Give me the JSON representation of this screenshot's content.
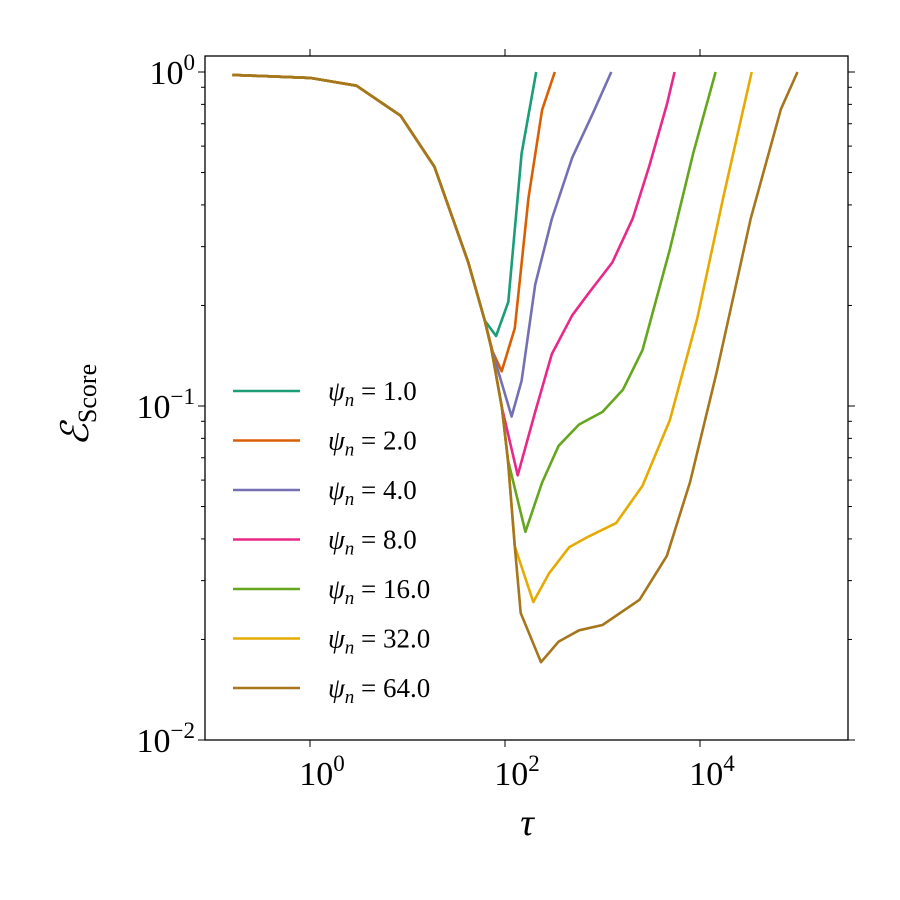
{
  "chart_data": {
    "type": "line",
    "title": "",
    "xlabel": "τ",
    "ylabel": {
      "main": "ℰ",
      "sub": "Score"
    },
    "xscale": "log",
    "yscale": "log",
    "xlim": [
      0.08,
      300000
    ],
    "ylim": [
      0.01,
      1.0
    ],
    "grid": false,
    "legend_placement": "lower-left",
    "xticks": [
      {
        "value": 1,
        "base": "10",
        "exp": "0"
      },
      {
        "value": 100,
        "base": "10",
        "exp": "2"
      },
      {
        "value": 10000,
        "base": "10",
        "exp": "4"
      }
    ],
    "yticks": [
      {
        "value": 1,
        "base": "10",
        "exp": "0"
      },
      {
        "value": 0.1,
        "base": "10",
        "exp": "−1"
      },
      {
        "value": 0.01,
        "base": "10",
        "exp": "−2"
      }
    ],
    "series": [
      {
        "name": "ψn = 1.0",
        "label_sym": "ψ",
        "label_sub": "n",
        "label_val": " = 1.0",
        "color": "#1b9e77",
        "x": [
          0.16,
          1,
          3,
          8.5,
          18.9,
          41.8,
          62,
          81,
          108,
          148,
          209
        ],
        "y": [
          0.98,
          0.96,
          0.91,
          0.74,
          0.52,
          0.27,
          0.18,
          0.162,
          0.205,
          0.57,
          1.0
        ]
      },
      {
        "name": "ψn = 2.0",
        "label_sym": "ψ",
        "label_sub": "n",
        "label_val": " = 2.0",
        "color": "#d95f02",
        "x": [
          0.16,
          1,
          3,
          8.5,
          18.9,
          41.8,
          62,
          75,
          92.5,
          126,
          174,
          240,
          324
        ],
        "y": [
          0.98,
          0.96,
          0.91,
          0.74,
          0.52,
          0.27,
          0.18,
          0.145,
          0.127,
          0.171,
          0.42,
          0.77,
          1.0
        ]
      },
      {
        "name": "ψn = 4.0",
        "label_sym": "ψ",
        "label_sub": "n",
        "label_val": " = 4.0",
        "color": "#7570b3",
        "x": [
          0.16,
          1,
          3,
          8.5,
          18.9,
          41.8,
          62,
          72,
          117,
          148,
          204,
          302,
          490,
          794,
          1230
        ],
        "y": [
          0.98,
          0.96,
          0.91,
          0.74,
          0.52,
          0.27,
          0.18,
          0.15,
          0.093,
          0.119,
          0.231,
          0.363,
          0.555,
          0.75,
          1.0
        ]
      },
      {
        "name": "ψn = 8.0",
        "label_sym": "ψ",
        "label_sub": "n",
        "label_val": " = 8.0",
        "color": "#e7298a",
        "x": [
          0.16,
          1,
          3,
          8.5,
          18.9,
          41.8,
          62,
          72,
          93,
          135,
          204,
          302,
          490,
          724,
          1259,
          2042,
          3020,
          4571,
          5495
        ],
        "y": [
          0.98,
          0.96,
          0.91,
          0.74,
          0.52,
          0.27,
          0.18,
          0.15,
          0.099,
          0.062,
          0.096,
          0.143,
          0.187,
          0.218,
          0.269,
          0.364,
          0.523,
          0.8,
          1.0
        ]
      },
      {
        "name": "ψn = 16.0",
        "label_sym": "ψ",
        "label_sub": "n",
        "label_val": " = 16.0",
        "color": "#66a61e",
        "x": [
          0.16,
          1,
          3,
          8.5,
          18.9,
          41.8,
          62,
          72,
          93,
          107,
          162,
          240,
          355,
          575,
          1000,
          1622,
          2570,
          4898,
          8511,
          14454
        ],
        "y": [
          0.98,
          0.96,
          0.91,
          0.74,
          0.52,
          0.27,
          0.18,
          0.15,
          0.099,
          0.069,
          0.042,
          0.059,
          0.076,
          0.088,
          0.096,
          0.112,
          0.147,
          0.294,
          0.571,
          1.0
        ]
      },
      {
        "name": "ψn = 32.0",
        "label_sym": "ψ",
        "label_sub": "n",
        "label_val": " = 32.0",
        "color": "#e6ab02",
        "x": [
          0.16,
          1,
          3,
          8.5,
          18.9,
          41.8,
          62,
          72,
          93,
          107,
          126,
          195,
          282,
          457,
          724,
          1380,
          2570,
          4898,
          9333,
          17378,
          33884
        ],
        "y": [
          0.98,
          0.96,
          0.91,
          0.74,
          0.52,
          0.27,
          0.18,
          0.15,
          0.099,
          0.069,
          0.038,
          0.0259,
          0.0315,
          0.0378,
          0.0407,
          0.0446,
          0.0577,
          0.0906,
          0.182,
          0.423,
          1.0
        ]
      },
      {
        "name": "ψn = 64.0",
        "label_sym": "ψ",
        "label_sub": "n",
        "label_val": " = 64.0",
        "color": "#a6761d",
        "x": [
          0.16,
          1,
          3,
          8.5,
          18.9,
          41.8,
          62,
          72,
          93,
          107,
          126,
          145,
          234,
          355,
          575,
          1000,
          2399,
          4571,
          7943,
          14791,
          33113,
          67608,
          100000
        ],
        "y": [
          0.98,
          0.96,
          0.91,
          0.74,
          0.52,
          0.27,
          0.18,
          0.15,
          0.099,
          0.069,
          0.038,
          0.024,
          0.0171,
          0.0197,
          0.0213,
          0.0221,
          0.0263,
          0.0356,
          0.0594,
          0.126,
          0.364,
          0.774,
          1.0
        ]
      }
    ]
  }
}
